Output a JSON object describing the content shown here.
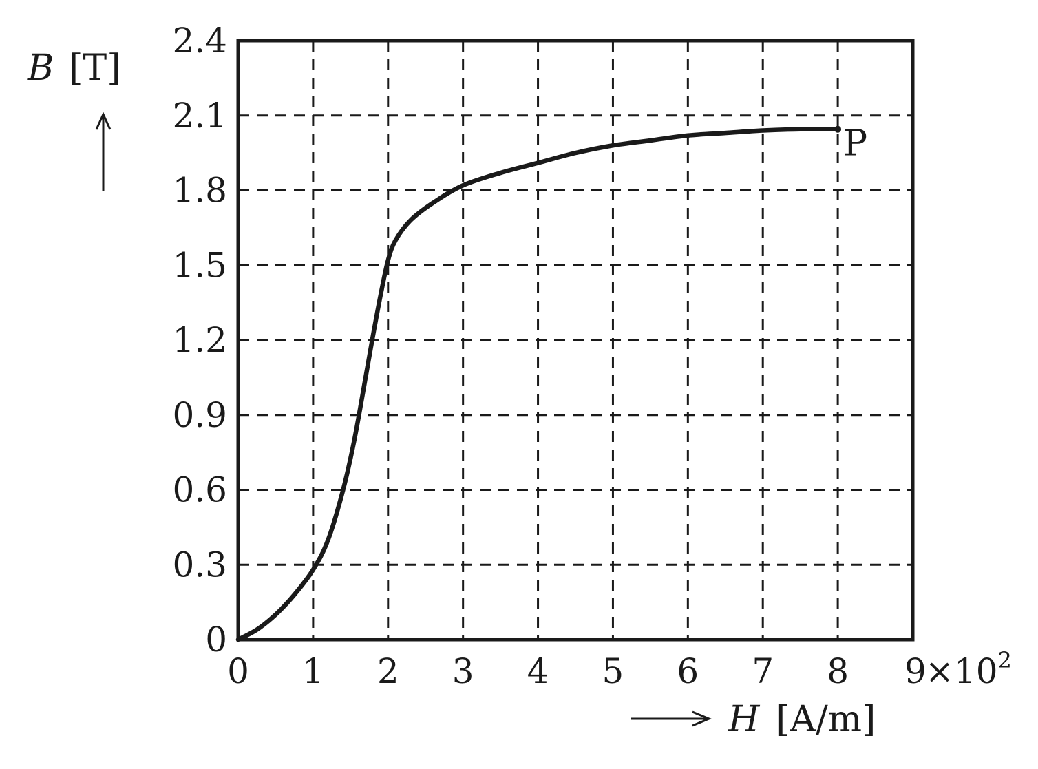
{
  "chart_data": {
    "type": "line",
    "xlabel": {
      "symbol": "H",
      "unit": "[A/m]"
    },
    "ylabel": {
      "symbol": "B",
      "unit": "[T]"
    },
    "x_multiplier": "×10",
    "x_multiplier_exp": "2",
    "xlim": [
      0,
      9
    ],
    "ylim": [
      0,
      2.4
    ],
    "x_ticks": [
      "0",
      "1",
      "2",
      "3",
      "4",
      "5",
      "6",
      "7",
      "8",
      "9"
    ],
    "y_ticks": [
      "0",
      "0.3",
      "0.6",
      "0.9",
      "1.2",
      "1.5",
      "1.8",
      "2.1",
      "2.4"
    ],
    "x_tick_values": [
      0,
      1,
      2,
      3,
      4,
      5,
      6,
      7,
      8,
      9
    ],
    "y_tick_values": [
      0,
      0.3,
      0.6,
      0.9,
      1.2,
      1.5,
      1.8,
      2.1,
      2.4
    ],
    "grid": true,
    "series": [
      {
        "x": [
          0,
          0.25,
          0.5,
          0.75,
          1.0,
          1.2,
          1.4,
          1.55,
          1.7,
          1.8,
          1.9,
          2.0,
          2.1,
          2.3,
          2.6,
          3.0,
          3.5,
          4.0,
          4.5,
          5.0,
          5.5,
          6.0,
          6.5,
          7.0,
          7.5,
          8.0
        ],
        "y": [
          0,
          0.04,
          0.1,
          0.18,
          0.28,
          0.4,
          0.6,
          0.8,
          1.05,
          1.22,
          1.38,
          1.52,
          1.6,
          1.68,
          1.75,
          1.82,
          1.87,
          1.91,
          1.95,
          1.98,
          2.0,
          2.02,
          2.03,
          2.04,
          2.045,
          2.045
        ]
      }
    ],
    "annotations": [
      {
        "text": "P",
        "x": 8.0,
        "y": 2.045
      }
    ]
  }
}
